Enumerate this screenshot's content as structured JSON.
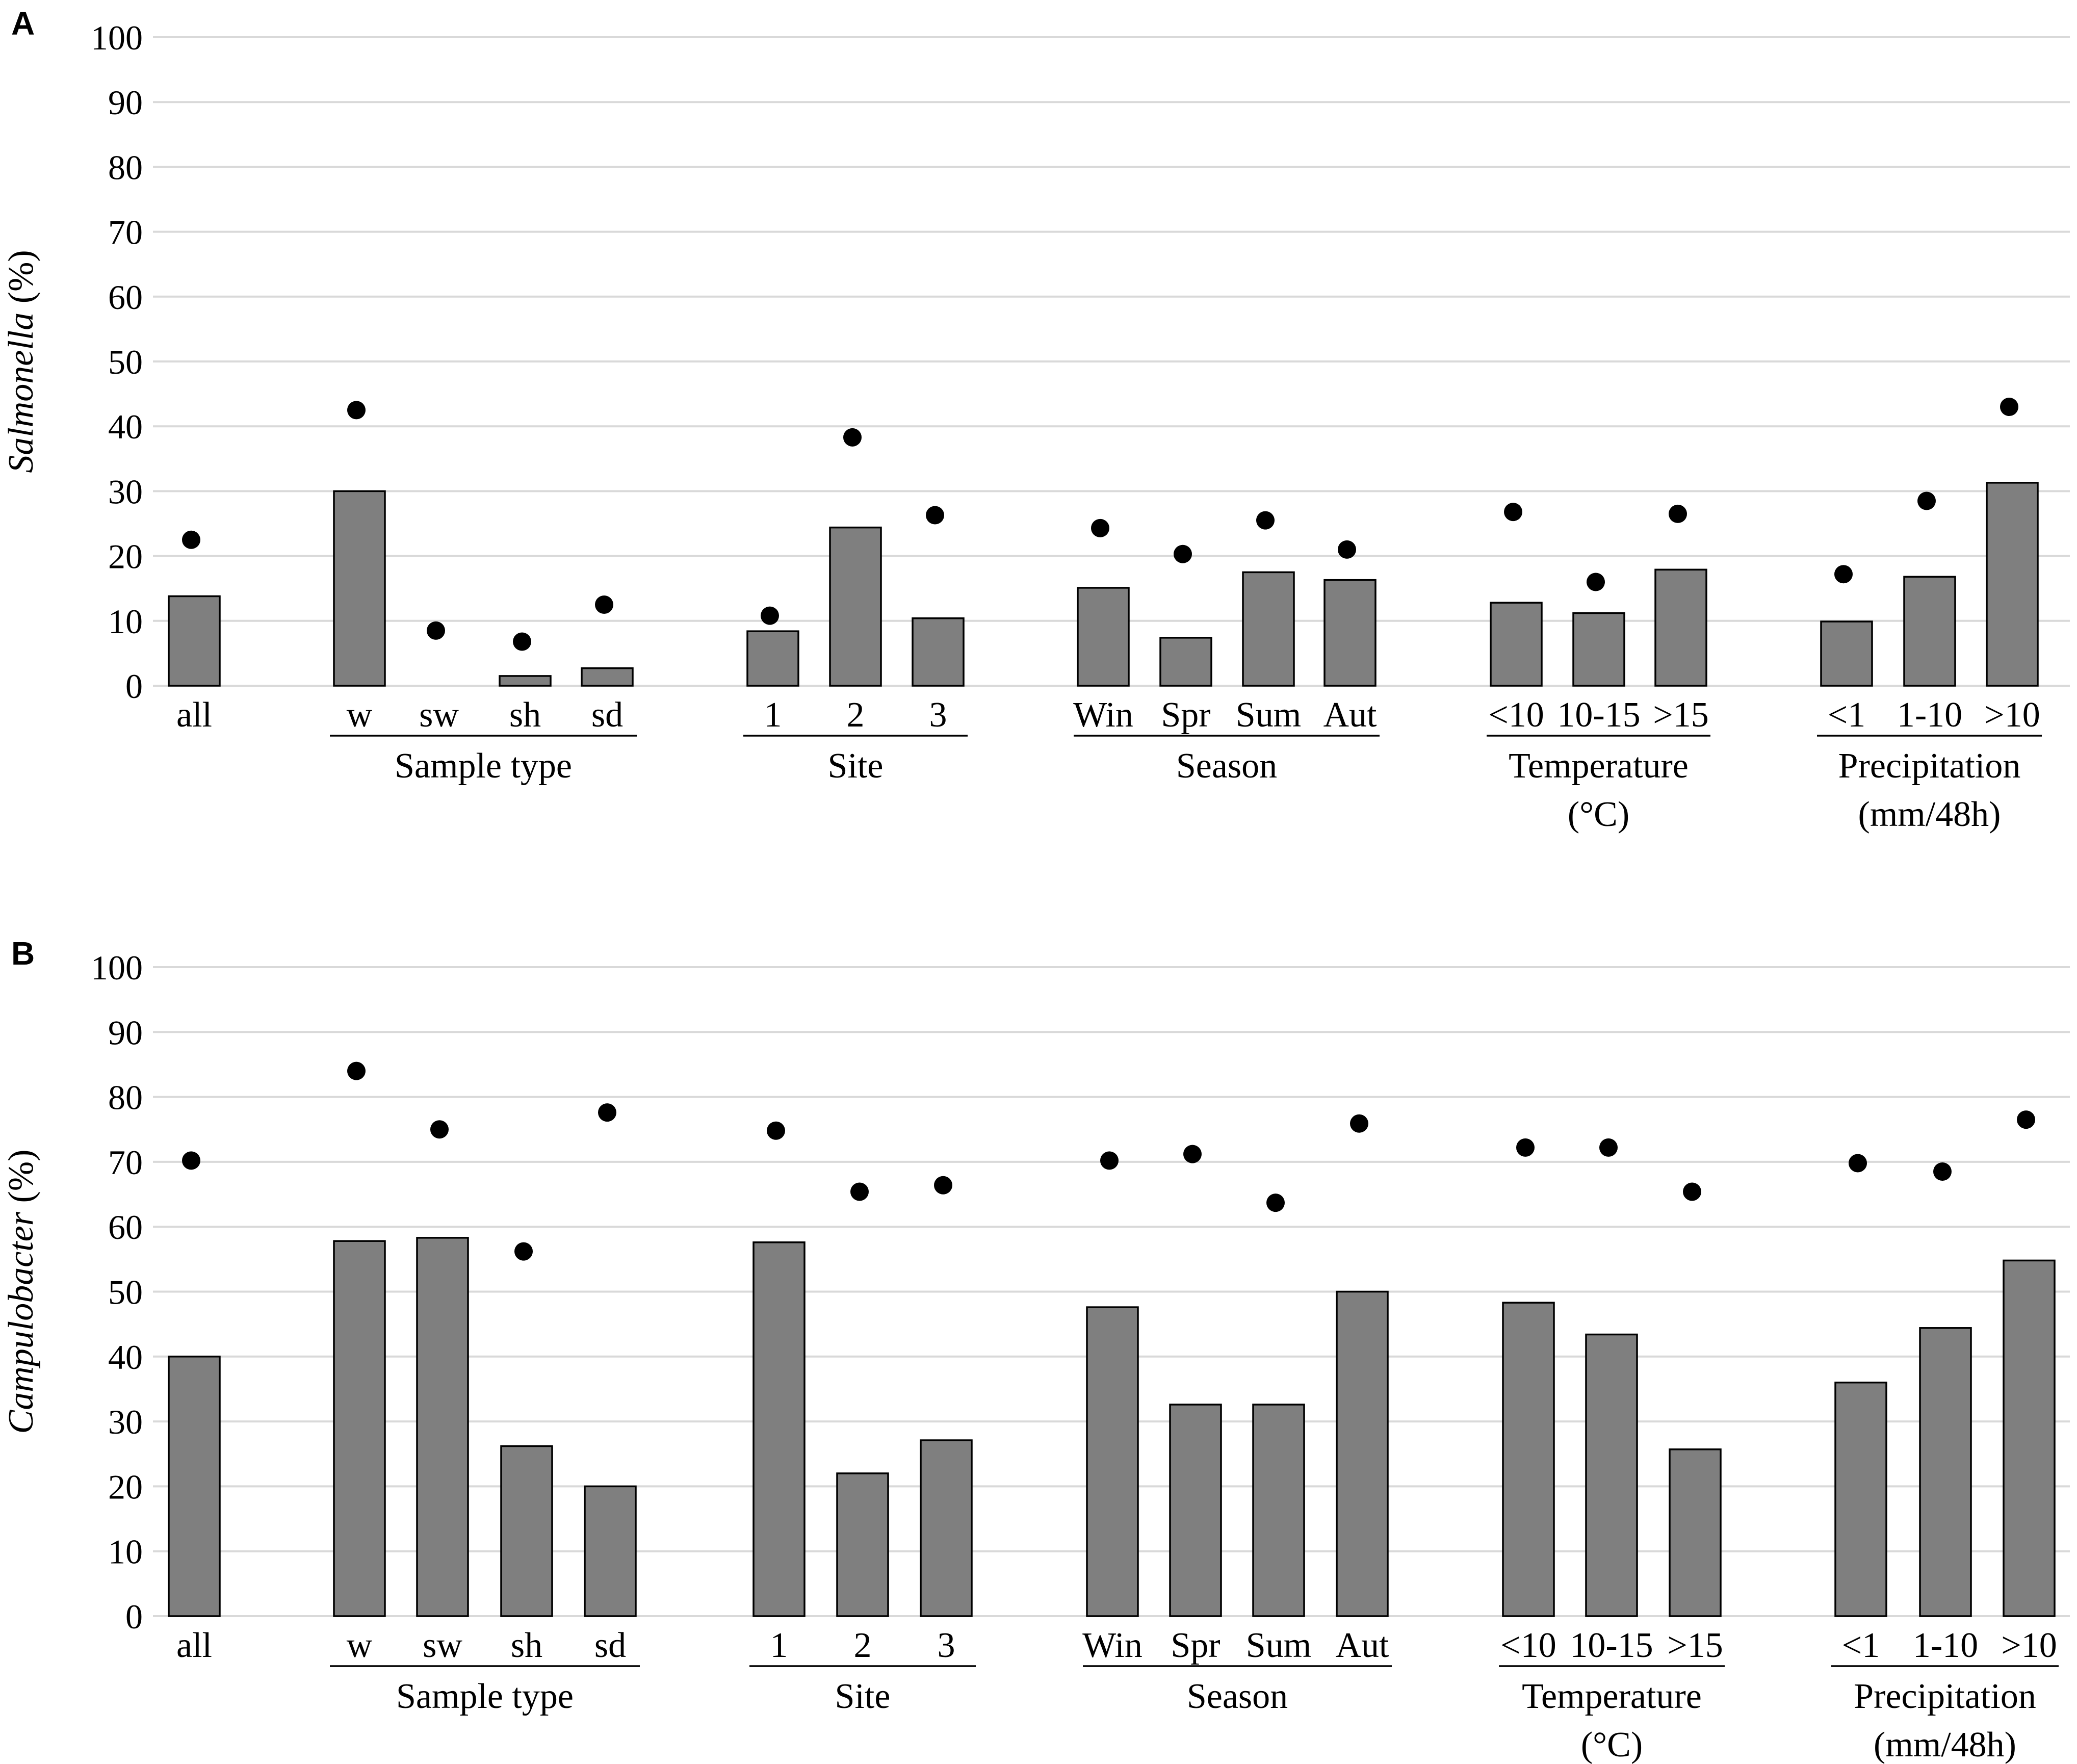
{
  "chart_data": [
    {
      "type": "bar",
      "panel": "A",
      "title": "",
      "ylabel_italic": "Salmonella",
      "ylabel_unit": " (%)",
      "ylim": [
        0,
        100
      ],
      "yticks": [
        0,
        10,
        20,
        30,
        40,
        50,
        60,
        70,
        80,
        90,
        100
      ],
      "grid": true,
      "categories": [
        "all",
        "w",
        "sw",
        "sh",
        "sd",
        "1",
        "2",
        "3",
        "Win",
        "Spr",
        "Sum",
        "Aut",
        "<10",
        "10-15",
        ">15",
        "<1",
        "1-10",
        ">10"
      ],
      "groups": [
        {
          "label_lines": [
            ""
          ],
          "members": [
            "all"
          ]
        },
        {
          "label_lines": [
            "Sample type"
          ],
          "members": [
            "w",
            "sw",
            "sh",
            "sd"
          ]
        },
        {
          "label_lines": [
            "Site"
          ],
          "members": [
            "1",
            "2",
            "3"
          ]
        },
        {
          "label_lines": [
            "Season"
          ],
          "members": [
            "Win",
            "Spr",
            "Sum",
            "Aut"
          ]
        },
        {
          "label_lines": [
            "Temperature",
            "(°C)"
          ],
          "members": [
            "<10",
            "10-15",
            ">15"
          ]
        },
        {
          "label_lines": [
            "Precipitation",
            "(mm/48h)"
          ],
          "members": [
            "<1",
            "1-10",
            ">10"
          ]
        }
      ],
      "series": [
        {
          "name": "bars",
          "style": "bar",
          "values": [
            13.8,
            30.0,
            0.0,
            1.5,
            2.7,
            8.4,
            24.4,
            10.4,
            15.1,
            7.4,
            17.5,
            16.3,
            12.8,
            11.2,
            17.9,
            9.9,
            16.8,
            31.3
          ]
        },
        {
          "name": "dots",
          "style": "point",
          "values": [
            22.5,
            42.5,
            8.5,
            6.8,
            12.5,
            10.8,
            38.3,
            26.3,
            24.3,
            20.3,
            25.5,
            21.0,
            26.8,
            16.0,
            26.5,
            17.2,
            28.5,
            43.0
          ]
        }
      ]
    },
    {
      "type": "bar",
      "panel": "B",
      "title": "",
      "ylabel_italic": "Campulobacter",
      "ylabel_unit": " (%)",
      "ylim": [
        0,
        100
      ],
      "yticks": [
        0,
        10,
        20,
        30,
        40,
        50,
        60,
        70,
        80,
        90,
        100
      ],
      "grid": true,
      "categories": [
        "all",
        "w",
        "sw",
        "sh",
        "sd",
        "1",
        "2",
        "3",
        "Win",
        "Spr",
        "Sum",
        "Aut",
        "<10",
        "10-15",
        ">15",
        "<1",
        "1-10",
        ">10"
      ],
      "groups": [
        {
          "label_lines": [
            ""
          ],
          "members": [
            "all"
          ]
        },
        {
          "label_lines": [
            "Sample type"
          ],
          "members": [
            "w",
            "sw",
            "sh",
            "sd"
          ]
        },
        {
          "label_lines": [
            "Site"
          ],
          "members": [
            "1",
            "2",
            "3"
          ]
        },
        {
          "label_lines": [
            "Season"
          ],
          "members": [
            "Win",
            "Spr",
            "Sum",
            "Aut"
          ]
        },
        {
          "label_lines": [
            "Temperature",
            "(°C)"
          ],
          "members": [
            "<10",
            "10-15",
            ">15"
          ]
        },
        {
          "label_lines": [
            "Precipitation",
            "(mm/48h)"
          ],
          "members": [
            "<1",
            "1-10",
            ">10"
          ]
        }
      ],
      "series": [
        {
          "name": "bars",
          "style": "bar",
          "values": [
            40.0,
            57.8,
            58.3,
            26.2,
            20.0,
            57.6,
            22.0,
            27.1,
            47.6,
            32.6,
            32.6,
            50.0,
            48.3,
            43.4,
            25.7,
            36.0,
            44.4,
            54.8
          ]
        },
        {
          "name": "dots",
          "style": "point",
          "values": [
            70.2,
            84.0,
            75.0,
            56.2,
            77.6,
            74.8,
            65.4,
            66.4,
            70.2,
            71.2,
            63.7,
            75.9,
            72.2,
            72.2,
            65.4,
            69.8,
            68.5,
            76.5
          ]
        }
      ]
    }
  ],
  "colors": {
    "bar_fill": "#7f7f7f",
    "bar_stroke": "#000000",
    "dot": "#000000",
    "grid": "#d9d9d9"
  }
}
